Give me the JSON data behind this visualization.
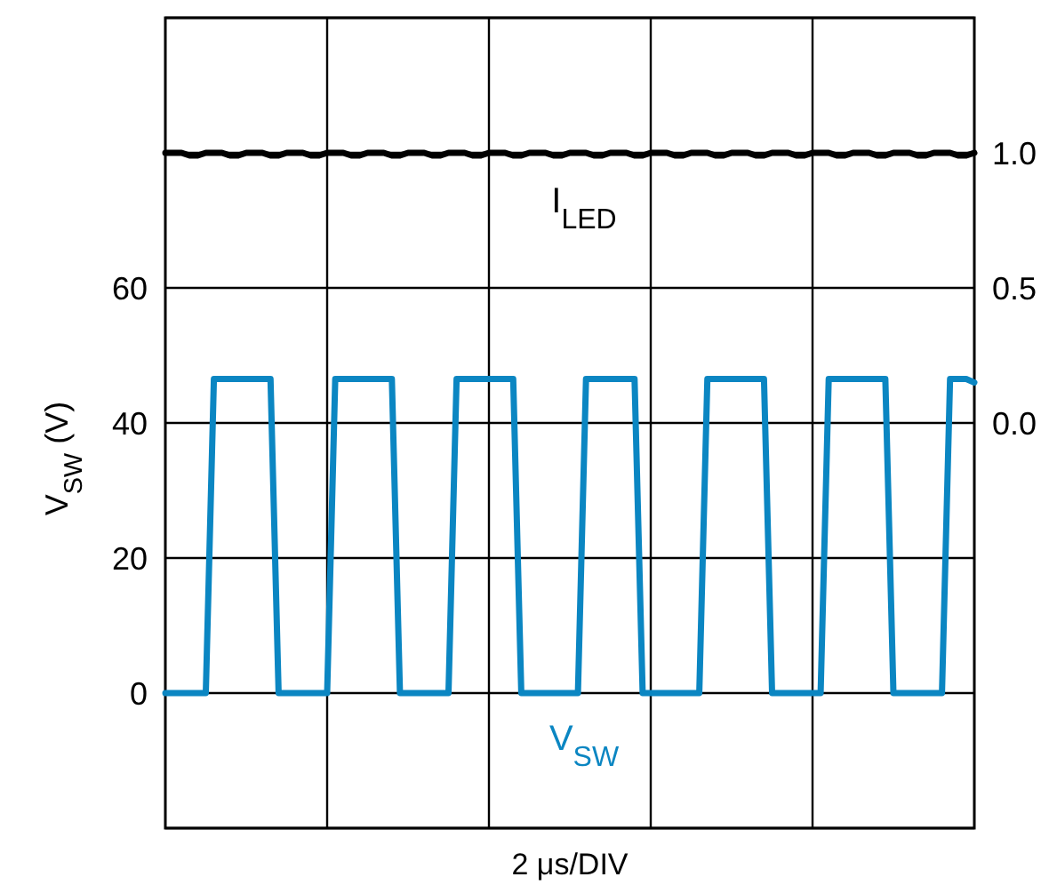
{
  "chart_data": {
    "type": "line",
    "xlabel": "2 μs/DIV",
    "ylabel": "V$_{SW}$ (V)",
    "categories": [
      null,
      null,
      null,
      null,
      null,
      null,
      null,
      null,
      null,
      null,
      null,
      null,
      null,
      null,
      null,
      null,
      null,
      null,
      null,
      null,
      null,
      null,
      null,
      null,
      null,
      null,
      null,
      null,
      null,
      null,
      null,
      null,
      null,
      null,
      null,
      null,
      null,
      null,
      null,
      null,
      null,
      null,
      null,
      null,
      null,
      null,
      null,
      null,
      null,
      null,
      null,
      null,
      null,
      null,
      null,
      null,
      null,
      null,
      null,
      null,
      null,
      null,
      null,
      null,
      null,
      null,
      null,
      null,
      null,
      null,
      null,
      null,
      null,
      null,
      null,
      null,
      null,
      null,
      null,
      null,
      null,
      null,
      null,
      null,
      null,
      null,
      null,
      null,
      null,
      null,
      null,
      null,
      null,
      null,
      null,
      null,
      null,
      null,
      null,
      null,
      null
    ],
    "ylim": [
      -20,
      100
    ],
    "yticks": [
      {
        "value": -20,
        "label": null
      },
      0,
      20,
      40,
      60,
      {
        "value": 80,
        "label": null
      },
      {
        "value": 100,
        "label": null
      }
    ],
    "y2lim": [
      -1.5,
      1.5
    ],
    "y2ticks": [
      {
        "value": 0,
        "label": "0.0"
      },
      {
        "value": 0.5,
        "label": "0.5"
      },
      {
        "value": 1,
        "label": "1.0"
      }
    ],
    "grid": true,
    "series": [
      {
        "name": "I$_{LED}$",
        "color": "#000000",
        "axis": "y2",
        "values": [
          1,
          1,
          1,
          0.99,
          0.99,
          1,
          1,
          1,
          0.99,
          0.99,
          1,
          1,
          1,
          0.99,
          0.99,
          1,
          1,
          1,
          0.99,
          0.99,
          1,
          1,
          1,
          0.99,
          0.99,
          1,
          1,
          1,
          0.99,
          0.99,
          1,
          1,
          1,
          0.99,
          0.99,
          1,
          1,
          1,
          0.99,
          0.99,
          1,
          1,
          1,
          0.99,
          0.99,
          1,
          1,
          1,
          0.99,
          0.99,
          1,
          1,
          1,
          0.99,
          0.99,
          1,
          1,
          1,
          0.99,
          0.99,
          1,
          1,
          1,
          0.99,
          0.99,
          1,
          1,
          1,
          0.99,
          0.99,
          1,
          1,
          1,
          0.99,
          0.99,
          1,
          1,
          1,
          0.99,
          0.99,
          1,
          1,
          1,
          0.99,
          0.99,
          1,
          1,
          1,
          0.99,
          0.99,
          1,
          1,
          1,
          0.99,
          0.99,
          1,
          1,
          1,
          0.99,
          0.99,
          1
        ]
      },
      {
        "name": "V$_{SW}$",
        "color": "#0b86c2",
        "values": [
          0,
          0,
          0,
          0,
          0,
          0,
          46.5,
          46.5,
          46.5,
          46.5,
          46.5,
          46.5,
          46.5,
          46.5,
          0,
          0,
          0,
          0,
          0,
          0,
          0,
          46.5,
          46.5,
          46.5,
          46.5,
          46.5,
          46.5,
          46.5,
          46.5,
          0,
          0,
          0,
          0,
          0,
          0,
          0,
          46.5,
          46.5,
          46.5,
          46.5,
          46.5,
          46.5,
          46.5,
          46.5,
          0,
          0,
          0,
          0,
          0,
          0,
          0,
          0,
          46.5,
          46.5,
          46.5,
          46.5,
          46.5,
          46.5,
          46.5,
          0,
          0,
          0,
          0,
          0,
          0,
          0,
          0,
          46.5,
          46.5,
          46.5,
          46.5,
          46.5,
          46.5,
          46.5,
          46.5,
          0,
          0,
          0,
          0,
          0,
          0,
          0,
          46.5,
          46.5,
          46.5,
          46.5,
          46.5,
          46.5,
          46.5,
          46.5,
          0,
          0,
          0,
          0,
          0,
          0,
          0,
          46.5,
          46.5,
          46.5,
          46
        ]
      }
    ]
  }
}
